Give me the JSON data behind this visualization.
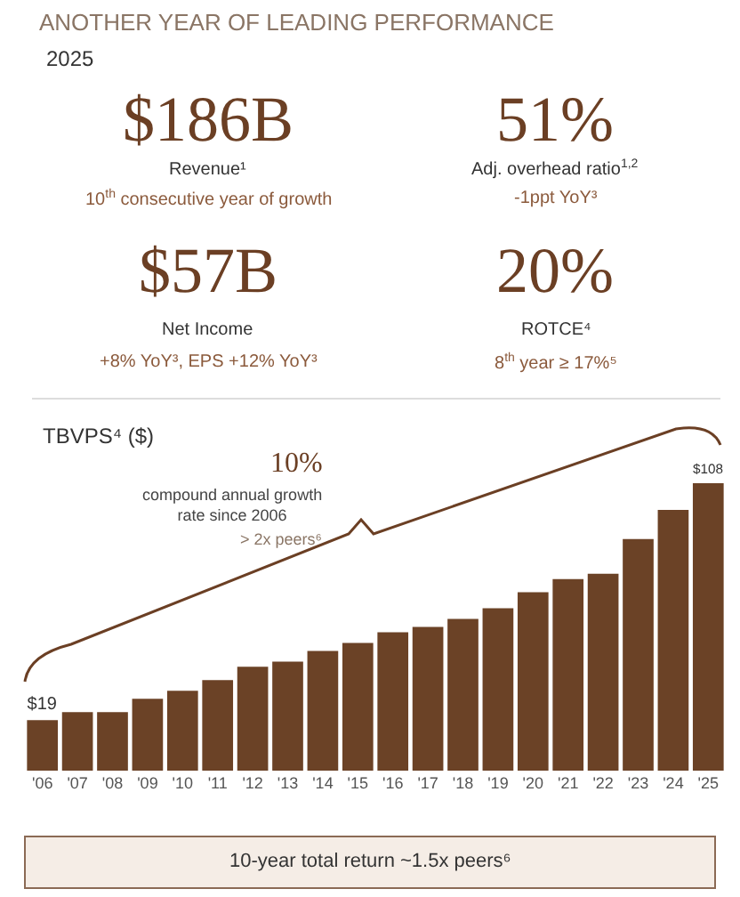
{
  "chart_data": [
    {
      "type": "other",
      "title": "ANOTHER YEAR OF LEADING PERFORMANCE",
      "subtitle": "2025",
      "annotations": [
        "$186B",
        "Revenue¹",
        "10$^{th}$ consecutive year of growth",
        "51%",
        "Adj. overhead ratio$^{1,2}$",
        "-1ppt YoY³",
        "$57B",
        "Net Income",
        "+8% YoY³, EPS +12% YoY³",
        "20%",
        "ROTCE⁴",
        "8$^{th}$ year ≥ 17%⁵"
      ]
    },
    {
      "type": "bar",
      "title": "TBVPS⁴ ($)",
      "categories": [
        "'06",
        "'07",
        "'08",
        "'09",
        "'10",
        "'11",
        "'12",
        "'13",
        "'14",
        "'15",
        "'16",
        "'17",
        "'18",
        "'19",
        "'20",
        "'21",
        "'22",
        "'23",
        "'24",
        "'25"
      ],
      "values": [
        19,
        22,
        22,
        27,
        30,
        34,
        39,
        41,
        45,
        48,
        52,
        54,
        57,
        61,
        67,
        72,
        74,
        87,
        98,
        108
      ],
      "value_labels": [
        "$19",
        null,
        null,
        null,
        null,
        null,
        null,
        null,
        null,
        null,
        null,
        null,
        null,
        null,
        null,
        null,
        null,
        null,
        null,
        "$108"
      ],
      "color": "#6b4226",
      "annotations": [
        "10%",
        "compound annual growth\nrate since 2006",
        "> 2x peers⁶",
        "10-year total return ~1.5x peers⁶"
      ]
    }
  ]
}
